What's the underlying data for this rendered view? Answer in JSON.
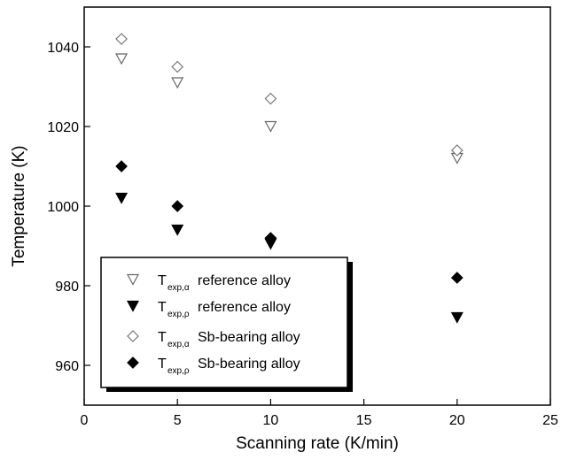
{
  "chart_data": {
    "type": "scatter",
    "title": "",
    "xlabel": "Scanning rate (K/min)",
    "ylabel": "Temperature (K)",
    "xlim": [
      0,
      25
    ],
    "ylim": [
      950,
      1050
    ],
    "xticks": [
      0,
      5,
      10,
      15,
      20,
      25
    ],
    "yticks": [
      960,
      980,
      1000,
      1020,
      1040
    ],
    "grid": false,
    "legend_position": "bottom-left",
    "series": [
      {
        "name": "T exp,α reference alloy",
        "name_main": "T",
        "name_sub": "exp,α",
        "name_rest": "reference alloy",
        "marker": "triangle-down-open",
        "x": [
          2,
          5,
          10,
          20
        ],
        "y": [
          1037,
          1031,
          1020,
          1012
        ]
      },
      {
        "name": "T exp,ρ reference alloy",
        "name_main": "T",
        "name_sub": "exp,ρ",
        "name_rest": "reference alloy",
        "marker": "triangle-down-filled",
        "x": [
          2,
          5,
          10,
          20
        ],
        "y": [
          1002,
          994,
          990.5,
          972
        ]
      },
      {
        "name": "T exp,α Sb-bearing alloy",
        "name_main": "T",
        "name_sub": "exp,α",
        "name_rest": "Sb-bearing alloy",
        "marker": "diamond-open",
        "x": [
          2,
          5,
          10,
          20
        ],
        "y": [
          1042,
          1035,
          1027,
          1014
        ]
      },
      {
        "name": "T exp,ρ Sb-bearing alloy",
        "name_main": "T",
        "name_sub": "exp,ρ",
        "name_rest": "Sb-bearing alloy",
        "marker": "diamond-filled",
        "x": [
          2,
          5,
          10,
          20
        ],
        "y": [
          1010,
          1000,
          992,
          982
        ]
      }
    ]
  }
}
